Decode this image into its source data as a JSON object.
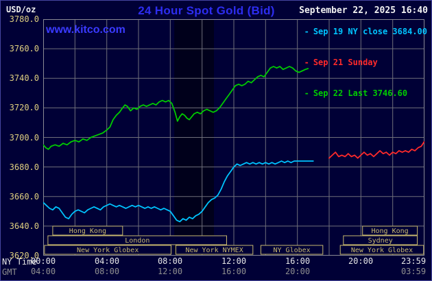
{
  "header": {
    "unit": "USD/oz",
    "title": "24 Hour Spot Gold (Bid)",
    "datetime": "September 22, 2025 16:40",
    "site": "www.kitco.com"
  },
  "legend": {
    "items": [
      {
        "marker": "-",
        "label": "Sep 19 NY close 3684.00",
        "color": "#00c4ff"
      },
      {
        "marker": "-",
        "label": "Sep 21 Sunday",
        "color": "#ff2a2a"
      },
      {
        "marker": "-",
        "label": "Sep 22 Last 3746.60",
        "color": "#00cc00"
      }
    ]
  },
  "axes": {
    "ny_label": "NY Time",
    "gmt_label": "GMT",
    "y_ticks": [
      {
        "value": 3780,
        "label": "3780.0"
      },
      {
        "value": 3760,
        "label": "3760.0"
      },
      {
        "value": 3740,
        "label": "3740.0"
      },
      {
        "value": 3720,
        "label": "3720.0"
      },
      {
        "value": 3700,
        "label": "3700.0"
      },
      {
        "value": 3680,
        "label": "3680.0"
      },
      {
        "value": 3660,
        "label": "3660.0"
      },
      {
        "value": 3640,
        "label": "3640.0"
      },
      {
        "value": 3620,
        "label": "3620.0"
      }
    ],
    "x_ticks_ny": [
      {
        "hour": 0,
        "label": "00:00"
      },
      {
        "hour": 4,
        "label": "04:00"
      },
      {
        "hour": 8,
        "label": "08:00"
      },
      {
        "hour": 12,
        "label": "12:00"
      },
      {
        "hour": 16,
        "label": "16:00"
      },
      {
        "hour": 20,
        "label": "20:00"
      },
      {
        "hour": 23.983,
        "label": "23:59"
      }
    ],
    "x_ticks_gmt": [
      {
        "hour": 0,
        "label": "04:00"
      },
      {
        "hour": 4,
        "label": "08:00"
      },
      {
        "hour": 8,
        "label": "12:00"
      },
      {
        "hour": 12,
        "label": "16:00"
      },
      {
        "hour": 16,
        "label": "20:00"
      },
      {
        "hour": 23.983,
        "label": "03:59"
      }
    ]
  },
  "sessions": {
    "rows": [
      [
        {
          "label": "Hong Kong",
          "start": 0.6,
          "end": 5.0
        },
        {
          "label": "Hong Kong",
          "start": 20.1,
          "end": 23.55
        }
      ],
      [
        {
          "label": "London",
          "start": 0.3,
          "end": 11.55
        },
        {
          "label": "Sydney",
          "start": 18.9,
          "end": 23.55
        }
      ],
      [
        {
          "label": "New York Globex",
          "start": 0.08,
          "end": 8.05
        },
        {
          "label": "New York NYMEX",
          "start": 8.35,
          "end": 13.2
        },
        {
          "label": "NY Globex",
          "start": 13.7,
          "end": 17.6
        },
        {
          "label": "New York Globex",
          "start": 18.7,
          "end": 23.95
        }
      ]
    ]
  },
  "chart_data": {
    "type": "line",
    "title": "24 Hour Spot Gold (Bid)",
    "xlabel": "NY Time",
    "ylabel": "USD/oz",
    "ylim": [
      3620,
      3780
    ],
    "xlim_hours": [
      0,
      24
    ],
    "y_step": 20,
    "x_grid_step_hours": 2,
    "grid": true,
    "legend_position": "top-right",
    "band": {
      "start_hour": 8.25,
      "end_hour": 10.75
    },
    "series": [
      {
        "name": "Sep 19 NY close 3684.00",
        "key": "sep19",
        "color": "#00c4ff",
        "points": [
          [
            0,
            3656
          ],
          [
            0.2,
            3654
          ],
          [
            0.4,
            3652
          ],
          [
            0.6,
            3651
          ],
          [
            0.8,
            3653
          ],
          [
            1,
            3652
          ],
          [
            1.2,
            3649
          ],
          [
            1.4,
            3646
          ],
          [
            1.6,
            3645
          ],
          [
            1.8,
            3648
          ],
          [
            2,
            3650
          ],
          [
            2.2,
            3651
          ],
          [
            2.4,
            3650
          ],
          [
            2.6,
            3649
          ],
          [
            2.8,
            3651
          ],
          [
            3,
            3652
          ],
          [
            3.2,
            3653
          ],
          [
            3.4,
            3652
          ],
          [
            3.6,
            3651
          ],
          [
            3.8,
            3653
          ],
          [
            4,
            3654
          ],
          [
            4.2,
            3655
          ],
          [
            4.4,
            3654
          ],
          [
            4.6,
            3653
          ],
          [
            4.8,
            3654
          ],
          [
            5,
            3653
          ],
          [
            5.2,
            3652
          ],
          [
            5.4,
            3653
          ],
          [
            5.6,
            3654
          ],
          [
            5.8,
            3653
          ],
          [
            6,
            3654
          ],
          [
            6.2,
            3653
          ],
          [
            6.4,
            3652
          ],
          [
            6.6,
            3653
          ],
          [
            6.8,
            3652
          ],
          [
            7,
            3653
          ],
          [
            7.2,
            3652
          ],
          [
            7.4,
            3651
          ],
          [
            7.6,
            3652
          ],
          [
            7.8,
            3651
          ],
          [
            8,
            3650
          ],
          [
            8.2,
            3647
          ],
          [
            8.4,
            3644
          ],
          [
            8.6,
            3643
          ],
          [
            8.8,
            3645
          ],
          [
            9,
            3644
          ],
          [
            9.2,
            3646
          ],
          [
            9.4,
            3645
          ],
          [
            9.6,
            3647
          ],
          [
            9.8,
            3648
          ],
          [
            10,
            3650
          ],
          [
            10.2,
            3653
          ],
          [
            10.4,
            3656
          ],
          [
            10.6,
            3658
          ],
          [
            10.8,
            3659
          ],
          [
            11,
            3661
          ],
          [
            11.2,
            3665
          ],
          [
            11.4,
            3670
          ],
          [
            11.6,
            3674
          ],
          [
            11.8,
            3677
          ],
          [
            12,
            3680
          ],
          [
            12.2,
            3682
          ],
          [
            12.4,
            3681
          ],
          [
            12.6,
            3682
          ],
          [
            12.8,
            3683
          ],
          [
            13,
            3682
          ],
          [
            13.2,
            3683
          ],
          [
            13.4,
            3682
          ],
          [
            13.6,
            3683
          ],
          [
            13.8,
            3682
          ],
          [
            14,
            3683
          ],
          [
            14.2,
            3682
          ],
          [
            14.4,
            3683
          ],
          [
            14.6,
            3682
          ],
          [
            14.8,
            3683
          ],
          [
            15,
            3684
          ],
          [
            15.2,
            3683
          ],
          [
            15.4,
            3684
          ],
          [
            15.6,
            3683
          ],
          [
            15.8,
            3684
          ],
          [
            16,
            3684
          ],
          [
            16.3,
            3684
          ],
          [
            16.6,
            3684
          ],
          [
            17,
            3684
          ]
        ]
      },
      {
        "name": "Sep 21 Sunday",
        "key": "sep21",
        "color": "#ff2a2a",
        "points": [
          [
            18,
            3686
          ],
          [
            18.2,
            3688
          ],
          [
            18.4,
            3690
          ],
          [
            18.6,
            3687
          ],
          [
            18.8,
            3688
          ],
          [
            19,
            3687
          ],
          [
            19.2,
            3689
          ],
          [
            19.4,
            3687
          ],
          [
            19.6,
            3688
          ],
          [
            19.8,
            3686
          ],
          [
            20,
            3688
          ],
          [
            20.2,
            3690
          ],
          [
            20.4,
            3688
          ],
          [
            20.6,
            3689
          ],
          [
            20.8,
            3687
          ],
          [
            21,
            3689
          ],
          [
            21.2,
            3691
          ],
          [
            21.4,
            3689
          ],
          [
            21.6,
            3690
          ],
          [
            21.8,
            3688
          ],
          [
            22,
            3690
          ],
          [
            22.2,
            3689
          ],
          [
            22.4,
            3691
          ],
          [
            22.6,
            3690
          ],
          [
            22.8,
            3691
          ],
          [
            23,
            3690
          ],
          [
            23.2,
            3692
          ],
          [
            23.4,
            3691
          ],
          [
            23.6,
            3693
          ],
          [
            23.8,
            3694
          ],
          [
            23.98,
            3697
          ]
        ]
      },
      {
        "name": "Sep 22 Last 3746.60",
        "key": "sep22",
        "color": "#00cc00",
        "points": [
          [
            0,
            3695
          ],
          [
            0.17,
            3693
          ],
          [
            0.33,
            3692
          ],
          [
            0.5,
            3694
          ],
          [
            0.75,
            3695
          ],
          [
            1,
            3694
          ],
          [
            1.25,
            3696
          ],
          [
            1.5,
            3695
          ],
          [
            1.75,
            3697
          ],
          [
            2,
            3698
          ],
          [
            2.25,
            3697
          ],
          [
            2.5,
            3699
          ],
          [
            2.75,
            3698
          ],
          [
            3,
            3700
          ],
          [
            3.25,
            3701
          ],
          [
            3.5,
            3702
          ],
          [
            3.75,
            3703
          ],
          [
            4,
            3705
          ],
          [
            4.2,
            3707
          ],
          [
            4.4,
            3712
          ],
          [
            4.6,
            3715
          ],
          [
            4.8,
            3717
          ],
          [
            5,
            3720
          ],
          [
            5.15,
            3722
          ],
          [
            5.3,
            3721
          ],
          [
            5.5,
            3718
          ],
          [
            5.7,
            3720
          ],
          [
            5.9,
            3719
          ],
          [
            6.1,
            3721
          ],
          [
            6.3,
            3722
          ],
          [
            6.5,
            3721
          ],
          [
            6.7,
            3722
          ],
          [
            6.9,
            3723
          ],
          [
            7.1,
            3722
          ],
          [
            7.3,
            3724
          ],
          [
            7.5,
            3725
          ],
          [
            7.7,
            3724
          ],
          [
            7.9,
            3725
          ],
          [
            8.1,
            3723
          ],
          [
            8.3,
            3717
          ],
          [
            8.45,
            3711
          ],
          [
            8.6,
            3714
          ],
          [
            8.75,
            3716
          ],
          [
            8.9,
            3715
          ],
          [
            9.05,
            3713
          ],
          [
            9.2,
            3712
          ],
          [
            9.35,
            3714
          ],
          [
            9.5,
            3716
          ],
          [
            9.7,
            3717
          ],
          [
            9.9,
            3716
          ],
          [
            10.1,
            3718
          ],
          [
            10.3,
            3719
          ],
          [
            10.5,
            3718
          ],
          [
            10.7,
            3717
          ],
          [
            10.9,
            3718
          ],
          [
            11.1,
            3720
          ],
          [
            11.3,
            3723
          ],
          [
            11.5,
            3726
          ],
          [
            11.7,
            3729
          ],
          [
            11.9,
            3732
          ],
          [
            12.1,
            3735
          ],
          [
            12.3,
            3736
          ],
          [
            12.5,
            3735
          ],
          [
            12.7,
            3736
          ],
          [
            12.9,
            3738
          ],
          [
            13.1,
            3737
          ],
          [
            13.3,
            3739
          ],
          [
            13.5,
            3741
          ],
          [
            13.7,
            3742
          ],
          [
            13.9,
            3741
          ],
          [
            14.1,
            3744
          ],
          [
            14.3,
            3747
          ],
          [
            14.5,
            3748
          ],
          [
            14.7,
            3747
          ],
          [
            14.9,
            3748
          ],
          [
            15.1,
            3746
          ],
          [
            15.3,
            3747
          ],
          [
            15.5,
            3748
          ],
          [
            15.7,
            3747
          ],
          [
            15.9,
            3745
          ],
          [
            16.1,
            3744
          ],
          [
            16.3,
            3745
          ],
          [
            16.5,
            3746
          ],
          [
            16.67,
            3746.6
          ]
        ]
      }
    ]
  },
  "colors": {
    "bg": "#000036",
    "grid": "#70707a",
    "plot_border": "#8b8b95",
    "band": "#000000",
    "session": "#c9b96e",
    "y_text": "#e0d080"
  }
}
